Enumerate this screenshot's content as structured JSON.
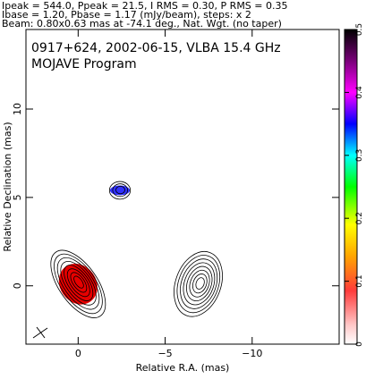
{
  "header": {
    "line1": "Ipeak = 544.0, Ppeak = 21.5, I RMS = 0.30, P RMS = 0.35",
    "line2": "Ibase = 1.20, Pbase = 1.17 (mJy/beam), steps: x 2",
    "line3": "Beam: 0.80x0.63 mas at -74.1 deg., Nat. Wgt. (no taper)"
  },
  "plot": {
    "source_line": "0917+624, 2002-06-15, VLBA 15.4 GHz",
    "program_line": "MOJAVE Program"
  },
  "chart_data": {
    "type": "contour",
    "xlabel": "Relative R.A. (mas)",
    "ylabel": "Relative Declination (mas)",
    "xlim": [
      3.0,
      -15.0
    ],
    "ylim": [
      -3.3,
      14.5
    ],
    "xticks": [
      0,
      -5,
      -10
    ],
    "xtick_labels": [
      "0",
      "−5",
      "−10"
    ],
    "yticks": [
      0,
      5,
      10
    ],
    "ytick_labels": [
      "0",
      "5",
      "10"
    ],
    "colorbar": {
      "min": 0.0,
      "max": 0.5,
      "ticks": [
        0.0,
        0.1,
        0.2,
        0.3,
        0.4,
        0.5
      ],
      "tick_labels": [
        "0",
        "0.1",
        "0.2",
        "0.3",
        "0.4",
        "0.5"
      ],
      "colors": [
        "#ffffff",
        "#ff9a9a",
        "#ff0000",
        "#ffa500",
        "#ffff00",
        "#00ff00",
        "#00ffff",
        "#0000ff",
        "#ff00ff",
        "#000000"
      ]
    },
    "components": [
      {
        "name": "core",
        "x": 0.0,
        "y": 0.1,
        "nlevels": 8,
        "rx": 1.1,
        "ry": 2.2,
        "angle": -35,
        "pol_color": "#e60000"
      },
      {
        "name": "knot",
        "x": -2.4,
        "y": 5.4,
        "nlevels": 3,
        "rx": 0.6,
        "ry": 0.5,
        "angle": 0,
        "pol_color": "#3030ff"
      },
      {
        "name": "lobe",
        "x": -6.9,
        "y": 0.1,
        "nlevels": 8,
        "rx": 1.3,
        "ry": 1.9,
        "angle": 20,
        "pol_color": ""
      }
    ]
  }
}
